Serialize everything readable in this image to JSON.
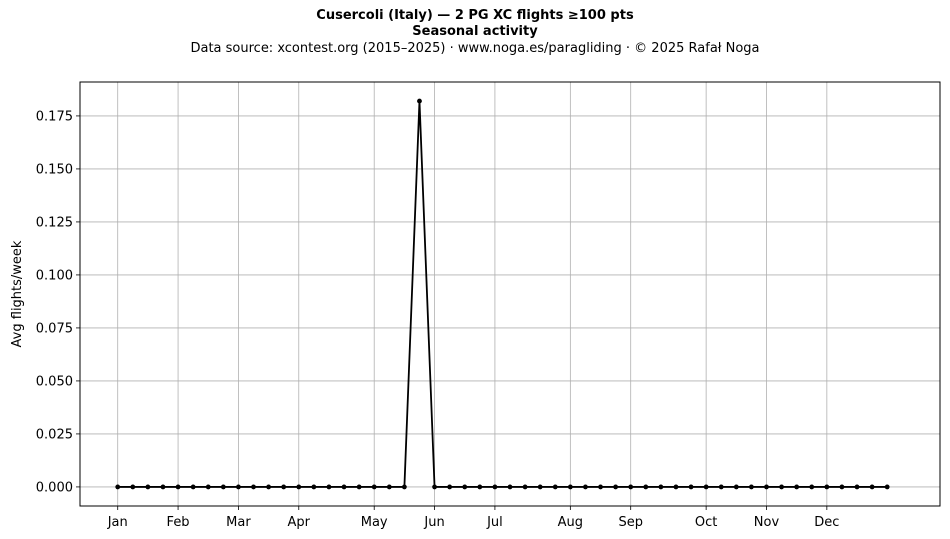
{
  "title": "Cusercoli (Italy)  —  2 PG XC flights ≥100 pts",
  "subtitle": "Seasonal activity",
  "source_line": "Data source: xcontest.org (2015–2025)  ·  www.noga.es/paragliding  ·  © 2025 Rafał Noga",
  "chart_data": {
    "type": "line",
    "title": "Cusercoli (Italy)  —  2 PG XC flights ≥100 pts",
    "subtitle": "Seasonal activity",
    "xlabel": "",
    "ylabel": "Avg flights/week",
    "x_unit": "week of year",
    "x_ticks": [
      {
        "label": "Jan",
        "week": 1
      },
      {
        "label": "Feb",
        "week": 5
      },
      {
        "label": "Mar",
        "week": 9
      },
      {
        "label": "Apr",
        "week": 13
      },
      {
        "label": "May",
        "week": 18
      },
      {
        "label": "Jun",
        "week": 22
      },
      {
        "label": "Jul",
        "week": 26
      },
      {
        "label": "Aug",
        "week": 31
      },
      {
        "label": "Sep",
        "week": 35
      },
      {
        "label": "Oct",
        "week": 40
      },
      {
        "label": "Nov",
        "week": 44
      },
      {
        "label": "Dec",
        "week": 48
      }
    ],
    "y_ticks": [
      "0.000",
      "0.025",
      "0.050",
      "0.075",
      "0.100",
      "0.125",
      "0.150",
      "0.175"
    ],
    "xlim": [
      -1.5,
      55.5
    ],
    "ylim": [
      -0.009,
      0.191
    ],
    "grid": true,
    "legend": "none",
    "series": [
      {
        "color": "#000000",
        "marker": "circle",
        "x": [
          1,
          2,
          3,
          4,
          5,
          6,
          7,
          8,
          9,
          10,
          11,
          12,
          13,
          14,
          15,
          16,
          17,
          18,
          19,
          20,
          21,
          22,
          23,
          24,
          25,
          26,
          27,
          28,
          29,
          30,
          31,
          32,
          33,
          34,
          35,
          36,
          37,
          38,
          39,
          40,
          41,
          42,
          43,
          44,
          45,
          46,
          47,
          48,
          49,
          50,
          51,
          52
        ],
        "y": [
          0,
          0,
          0,
          0,
          0,
          0,
          0,
          0,
          0,
          0,
          0,
          0,
          0,
          0,
          0,
          0,
          0,
          0,
          0,
          0,
          0.182,
          0,
          0,
          0,
          0,
          0,
          0,
          0,
          0,
          0,
          0,
          0,
          0,
          0,
          0,
          0,
          0,
          0,
          0,
          0,
          0,
          0,
          0,
          0,
          0,
          0,
          0,
          0,
          0,
          0,
          0,
          0
        ]
      }
    ]
  }
}
